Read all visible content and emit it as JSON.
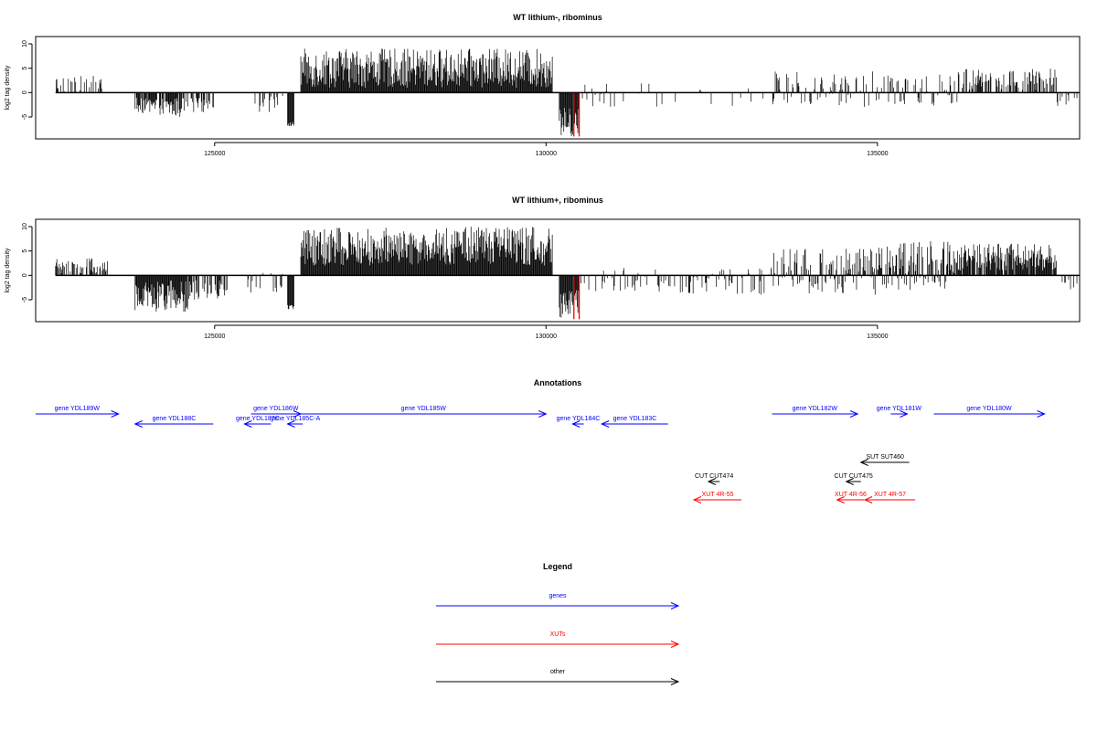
{
  "chart_data": [
    {
      "type": "bar",
      "title": "WT lithium-, ribominus",
      "ylabel": "log2 tag density",
      "xlabel": "",
      "xlim": [
        122300,
        138050
      ],
      "ylim": [
        -9.5,
        11.5
      ],
      "x_ticks": [
        {
          "value": 125000,
          "label": "125000"
        },
        {
          "value": 130000,
          "label": "130000"
        },
        {
          "value": 135000,
          "label": "135000"
        }
      ],
      "y_ticks": [
        {
          "value": 10,
          "label": "10"
        },
        {
          "value": 5,
          "label": "5"
        },
        {
          "value": 0,
          "label": "0"
        },
        {
          "value": -5,
          "label": "-5"
        }
      ],
      "baseline": [
        122600,
        138050
      ],
      "series": [
        {
          "color": "#000000",
          "regions": [
            {
              "x": [
                122600,
                123300
              ],
              "y": [
                0,
                3.5
              ],
              "density": 0.35
            },
            {
              "x": [
                123800,
                124500
              ],
              "y": [
                -5,
                -1
              ],
              "density": 0.85
            },
            {
              "x": [
                124500,
                125000
              ],
              "y": [
                -4,
                -1
              ],
              "density": 0.4
            },
            {
              "x": [
                125600,
                126100
              ],
              "y": [
                -4,
                -0.5
              ],
              "density": 0.15
            },
            {
              "x": [
                126100,
                126200
              ],
              "y": [
                -7,
                -6
              ],
              "density": 1.0
            },
            {
              "x": [
                126300,
                130100
              ],
              "y": [
                1,
                9
              ],
              "density": 1.0
            },
            {
              "x": [
                130200,
                130500
              ],
              "y": [
                -9,
                -3
              ],
              "density": 1.0
            },
            {
              "x": [
                130500,
                131700
              ],
              "y": [
                -3,
                2
              ],
              "density": 0.12
            },
            {
              "x": [
                131700,
                133400
              ],
              "y": [
                -3,
                1
              ],
              "density": 0.06
            },
            {
              "x": [
                133400,
                136200
              ],
              "y": [
                -3,
                4.5
              ],
              "density": 0.4
            },
            {
              "x": [
                136200,
                137700
              ],
              "y": [
                0.5,
                5
              ],
              "density": 0.55
            },
            {
              "x": [
                137700,
                138050
              ],
              "y": [
                -3,
                -0.5
              ],
              "density": 0.2
            }
          ]
        },
        {
          "color": "#ff0000",
          "bars": [
            {
              "x": 130420,
              "y": -9
            },
            {
              "x": 130500,
              "y": -9
            }
          ]
        }
      ]
    },
    {
      "type": "bar",
      "title": "WT lithium+, ribominus",
      "ylabel": "log2 tag density",
      "xlabel": "",
      "xlim": [
        122300,
        138050
      ],
      "ylim": [
        -9.5,
        11.5
      ],
      "x_ticks": [
        {
          "value": 125000,
          "label": "125000"
        },
        {
          "value": 130000,
          "label": "130000"
        },
        {
          "value": 135000,
          "label": "135000"
        }
      ],
      "y_ticks": [
        {
          "value": 10,
          "label": "10"
        },
        {
          "value": 5,
          "label": "5"
        },
        {
          "value": 0,
          "label": "0"
        },
        {
          "value": -5,
          "label": "-5"
        }
      ],
      "baseline": [
        122600,
        138050
      ],
      "series": [
        {
          "color": "#000000",
          "regions": [
            {
              "x": [
                122600,
                123400
              ],
              "y": [
                0,
                3.5
              ],
              "density": 0.6
            },
            {
              "x": [
                123800,
                124600
              ],
              "y": [
                -7.5,
                -1
              ],
              "density": 1.0
            },
            {
              "x": [
                124600,
                125200
              ],
              "y": [
                -5,
                -1
              ],
              "density": 0.5
            },
            {
              "x": [
                125500,
                126100
              ],
              "y": [
                -4,
                1
              ],
              "density": 0.25
            },
            {
              "x": [
                126100,
                126200
              ],
              "y": [
                -7,
                -6
              ],
              "density": 1.0
            },
            {
              "x": [
                126300,
                130100
              ],
              "y": [
                2,
                10
              ],
              "density": 1.0
            },
            {
              "x": [
                130200,
                130500
              ],
              "y": [
                -9,
                -3
              ],
              "density": 1.0
            },
            {
              "x": [
                130500,
                133400
              ],
              "y": [
                -4,
                1.5
              ],
              "density": 0.3
            },
            {
              "x": [
                133400,
                135000
              ],
              "y": [
                -4,
                5.5
              ],
              "density": 0.7
            },
            {
              "x": [
                135000,
                136200
              ],
              "y": [
                -3,
                7
              ],
              "density": 0.8
            },
            {
              "x": [
                136200,
                137700
              ],
              "y": [
                1,
                6.5
              ],
              "density": 0.9
            },
            {
              "x": [
                137700,
                138050
              ],
              "y": [
                -3,
                -0.5
              ],
              "density": 0.3
            }
          ]
        },
        {
          "color": "#ff0000",
          "bars": [
            {
              "x": 130420,
              "y": -9
            },
            {
              "x": 130500,
              "y": -9
            }
          ]
        }
      ]
    }
  ],
  "annotations": {
    "title": "Annotations",
    "items": [
      {
        "label": "gene YDL189W",
        "color": "#0000ff",
        "row": 0,
        "start": 122300,
        "end": 123550,
        "dir": "right"
      },
      {
        "label": "gene YDL188C",
        "color": "#0000ff",
        "row": 1,
        "start": 123800,
        "end": 124980,
        "dir": "left"
      },
      {
        "label": "gene YDL187C",
        "color": "#0000ff",
        "row": 1,
        "start": 125450,
        "end": 125850,
        "dir": "left"
      },
      {
        "label": "gene YDL186W",
        "color": "#0000ff",
        "row": 0,
        "start": 125550,
        "end": 126300,
        "dir": "right"
      },
      {
        "label": "gene YDL185C-A",
        "color": "#0000ff",
        "row": 1,
        "start": 126100,
        "end": 126330,
        "dir": "left"
      },
      {
        "label": "gene YDL185W",
        "color": "#0000ff",
        "row": 0,
        "start": 126300,
        "end": 130000,
        "dir": "right"
      },
      {
        "label": "gene YDL184C",
        "color": "#0000ff",
        "row": 1,
        "start": 130400,
        "end": 130570,
        "dir": "left"
      },
      {
        "label": "gene YDL183C",
        "color": "#0000ff",
        "row": 1,
        "start": 130840,
        "end": 131840,
        "dir": "left"
      },
      {
        "label": "gene YDL182W",
        "color": "#0000ff",
        "row": 0,
        "start": 133410,
        "end": 134700,
        "dir": "right"
      },
      {
        "label": "gene YDL181W",
        "color": "#0000ff",
        "row": 0,
        "start": 135200,
        "end": 135450,
        "dir": "right"
      },
      {
        "label": "gene YDL180W",
        "color": "#0000ff",
        "row": 0,
        "start": 135850,
        "end": 137520,
        "dir": "right"
      },
      {
        "label": "SUT SUT460",
        "color": "#000000",
        "row": 2,
        "start": 134750,
        "end": 135480,
        "dir": "left"
      },
      {
        "label": "CUT CUT474",
        "color": "#000000",
        "row": 3,
        "start": 132450,
        "end": 132620,
        "dir": "left"
      },
      {
        "label": "CUT CUT475",
        "color": "#000000",
        "row": 3,
        "start": 134530,
        "end": 134750,
        "dir": "left"
      },
      {
        "label": "XUT 4R-55",
        "color": "#ff0000",
        "row": 4,
        "start": 132230,
        "end": 132950,
        "dir": "left"
      },
      {
        "label": "XUT 4R-56",
        "color": "#ff0000",
        "row": 4,
        "start": 134390,
        "end": 134800,
        "dir": "left"
      },
      {
        "label": "XUT 4R-57",
        "color": "#ff0000",
        "row": 4,
        "start": 134810,
        "end": 135570,
        "dir": "left"
      }
    ]
  },
  "legend": {
    "title": "Legend",
    "items": [
      {
        "label": "genes",
        "color": "#0000ff"
      },
      {
        "label": "XUTs",
        "color": "#ff0000"
      },
      {
        "label": "other",
        "color": "#000000"
      }
    ]
  }
}
